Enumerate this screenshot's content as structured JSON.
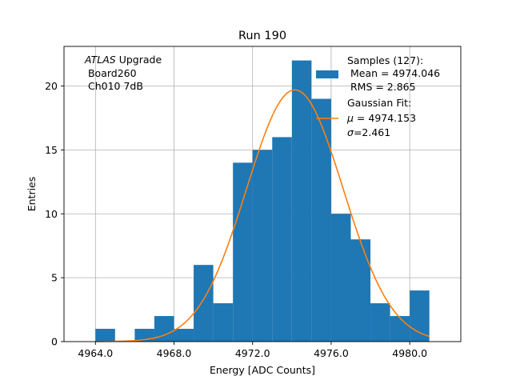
{
  "chart_data": {
    "type": "bar",
    "title": "Run 190",
    "xlabel": "Energy [ADC Counts]",
    "ylabel": "Entries",
    "xlim": [
      4962.4,
      4982.6
    ],
    "ylim": [
      0,
      23.1
    ],
    "grid": true,
    "xticks": [
      4964,
      4968,
      4972,
      4976,
      4980
    ],
    "xtick_labels": [
      "4964.0",
      "4968.0",
      "4972.0",
      "4976.0",
      "4980.0"
    ],
    "yticks": [
      0,
      5,
      10,
      15,
      20
    ],
    "ytick_labels": [
      "0",
      "5",
      "10",
      "15",
      "20"
    ],
    "histogram": {
      "bin_edges": [
        4964,
        4965,
        4966,
        4967,
        4968,
        4969,
        4970,
        4971,
        4972,
        4973,
        4974,
        4975,
        4976,
        4977,
        4978,
        4979,
        4980,
        4981
      ],
      "counts": [
        1,
        0,
        1,
        2,
        1,
        6,
        3,
        14,
        15,
        16,
        22,
        19,
        10,
        8,
        3,
        2,
        4
      ],
      "color": "#1f77b4"
    },
    "fit": {
      "type": "gaussian",
      "mu": 4974.153,
      "sigma": 2.461,
      "peak": 19.7,
      "x_range": [
        4964,
        4981
      ],
      "color": "#ff7f0e"
    },
    "annotation": {
      "line1_italic": "ATLAS",
      "line1_rest": " Upgrade",
      "line2": " Board260",
      "line3": " Ch010 7dB"
    },
    "legend": {
      "position": "top-right",
      "samples_lines": [
        "Samples (127):",
        " Mean = 4974.046",
        " RMS = 2.865"
      ],
      "fit_title": "Gaussian Fit:",
      "fit_mu_symbol": "μ",
      "fit_mu_rest": " = 4974.153",
      "fit_sigma_symbol": "σ",
      "fit_sigma_rest": "=2.461"
    }
  }
}
